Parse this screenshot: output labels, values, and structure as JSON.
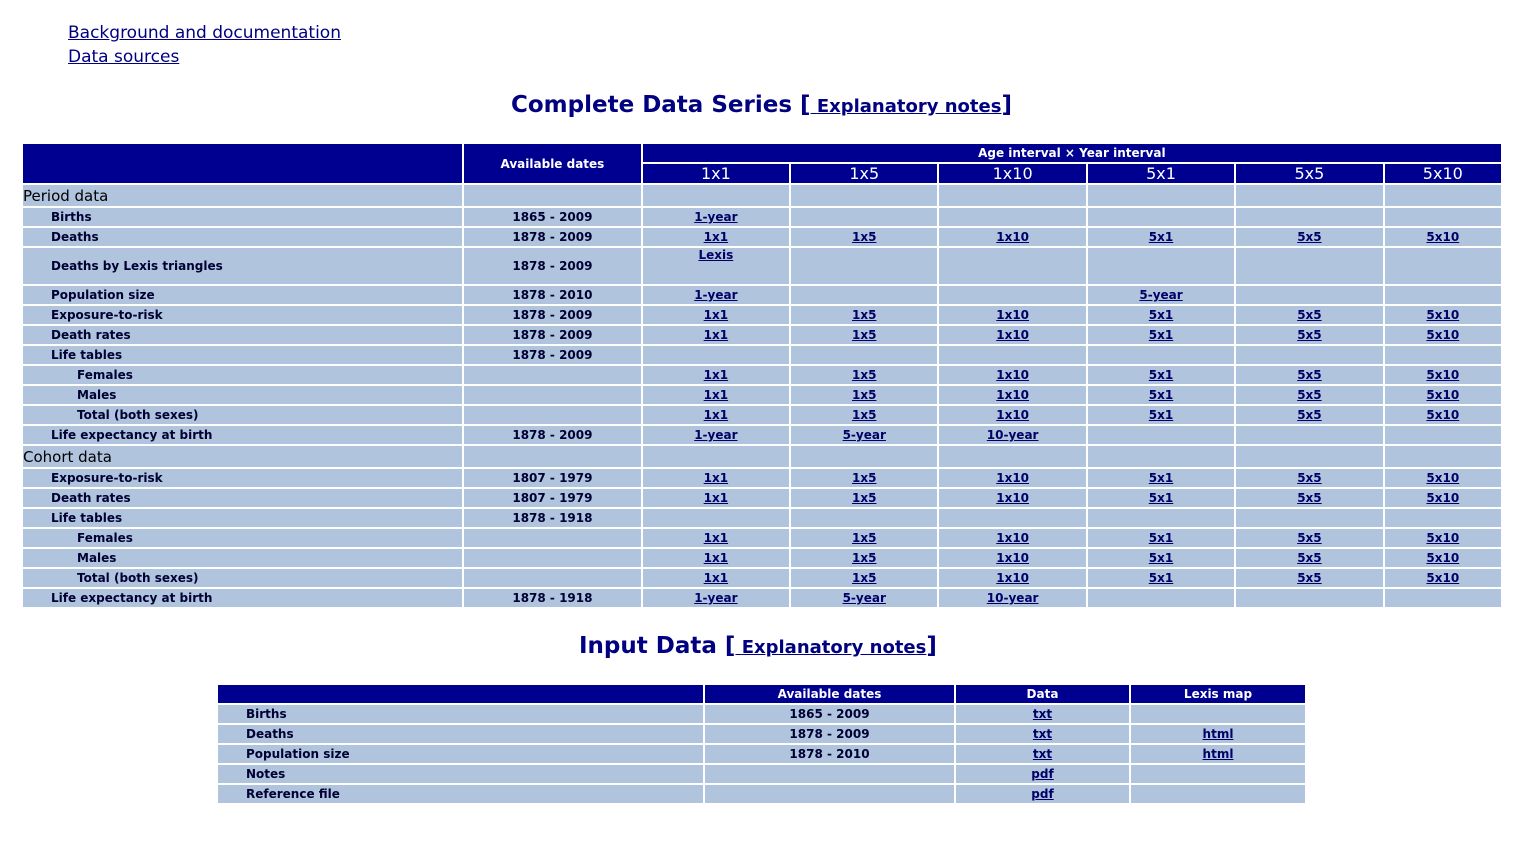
{
  "links": {
    "background": "Background and documentation",
    "sources": "Data sources"
  },
  "complete": {
    "title": "Complete Data Series",
    "note": "Explanatory notes",
    "header": {
      "dates": "Available dates",
      "interval": "Age interval × Year interval",
      "cols": [
        "1x1",
        "1x5",
        "1x10",
        "5x1",
        "5x5",
        "5x10"
      ]
    },
    "period_label": "Period data",
    "cohort_label": "Cohort data",
    "period": [
      {
        "label": "Births",
        "dates": "1865 - 2009",
        "cells": [
          "1-year",
          "",
          "",
          "",
          "",
          ""
        ],
        "indent": 1
      },
      {
        "label": "Deaths",
        "dates": "1878 - 2009",
        "cells": [
          "1x1",
          "1x5",
          "1x10",
          "5x1",
          "5x5",
          "5x10"
        ],
        "indent": 1
      },
      {
        "label": "Deaths by Lexis triangles",
        "dates": "1878 - 2009",
        "cells": [
          "Lexis",
          "",
          "",
          "",
          "",
          ""
        ],
        "indent": 1,
        "tall": true
      },
      {
        "label": "Population size",
        "dates": "1878 - 2010",
        "cells": [
          "1-year",
          "",
          "",
          "5-year",
          "",
          ""
        ],
        "indent": 1
      },
      {
        "label": "Exposure-to-risk",
        "dates": "1878 - 2009",
        "cells": [
          "1x1",
          "1x5",
          "1x10",
          "5x1",
          "5x5",
          "5x10"
        ],
        "indent": 1
      },
      {
        "label": "Death rates",
        "dates": "1878 - 2009",
        "cells": [
          "1x1",
          "1x5",
          "1x10",
          "5x1",
          "5x5",
          "5x10"
        ],
        "indent": 1
      },
      {
        "label": "Life tables",
        "dates": "1878 - 2009",
        "cells": [
          "",
          "",
          "",
          "",
          "",
          ""
        ],
        "indent": 1
      },
      {
        "label": "Females",
        "dates": "",
        "cells": [
          "1x1",
          "1x5",
          "1x10",
          "5x1",
          "5x5",
          "5x10"
        ],
        "indent": 2
      },
      {
        "label": "Males",
        "dates": "",
        "cells": [
          "1x1",
          "1x5",
          "1x10",
          "5x1",
          "5x5",
          "5x10"
        ],
        "indent": 2
      },
      {
        "label": "Total (both sexes)",
        "dates": "",
        "cells": [
          "1x1",
          "1x5",
          "1x10",
          "5x1",
          "5x5",
          "5x10"
        ],
        "indent": 2
      },
      {
        "label": "Life expectancy at birth",
        "dates": "1878 - 2009",
        "cells": [
          "1-year",
          "5-year",
          "10-year",
          "",
          "",
          ""
        ],
        "indent": 1
      }
    ],
    "cohort": [
      {
        "label": "Exposure-to-risk",
        "dates": "1807 - 1979",
        "cells": [
          "1x1",
          "1x5",
          "1x10",
          "5x1",
          "5x5",
          "5x10"
        ],
        "indent": 1
      },
      {
        "label": "Death rates",
        "dates": "1807 - 1979",
        "cells": [
          "1x1",
          "1x5",
          "1x10",
          "5x1",
          "5x5",
          "5x10"
        ],
        "indent": 1
      },
      {
        "label": "Life tables",
        "dates": "1878 - 1918",
        "cells": [
          "",
          "",
          "",
          "",
          "",
          ""
        ],
        "indent": 1
      },
      {
        "label": "Females",
        "dates": "",
        "cells": [
          "1x1",
          "1x5",
          "1x10",
          "5x1",
          "5x5",
          "5x10"
        ],
        "indent": 2
      },
      {
        "label": "Males",
        "dates": "",
        "cells": [
          "1x1",
          "1x5",
          "1x10",
          "5x1",
          "5x5",
          "5x10"
        ],
        "indent": 2
      },
      {
        "label": "Total (both sexes)",
        "dates": "",
        "cells": [
          "1x1",
          "1x5",
          "1x10",
          "5x1",
          "5x5",
          "5x10"
        ],
        "indent": 2
      },
      {
        "label": "Life expectancy at birth",
        "dates": "1878 - 1918",
        "cells": [
          "1-year",
          "5-year",
          "10-year",
          "",
          "",
          ""
        ],
        "indent": 1
      }
    ]
  },
  "input": {
    "title": "Input Data",
    "note": "Explanatory notes",
    "header": {
      "dates": "Available dates",
      "data": "Data",
      "lexis": "Lexis map"
    },
    "rows": [
      {
        "label": "Births",
        "dates": "1865 - 2009",
        "data": "txt",
        "lexis": ""
      },
      {
        "label": "Deaths",
        "dates": "1878 - 2009",
        "data": "txt",
        "lexis": "html"
      },
      {
        "label": "Population size",
        "dates": "1878 - 2010",
        "data": "txt",
        "lexis": "html"
      },
      {
        "label": "Notes",
        "dates": "",
        "data": "pdf",
        "lexis": ""
      },
      {
        "label": "Reference file",
        "dates": "",
        "data": "pdf",
        "lexis": ""
      }
    ]
  }
}
